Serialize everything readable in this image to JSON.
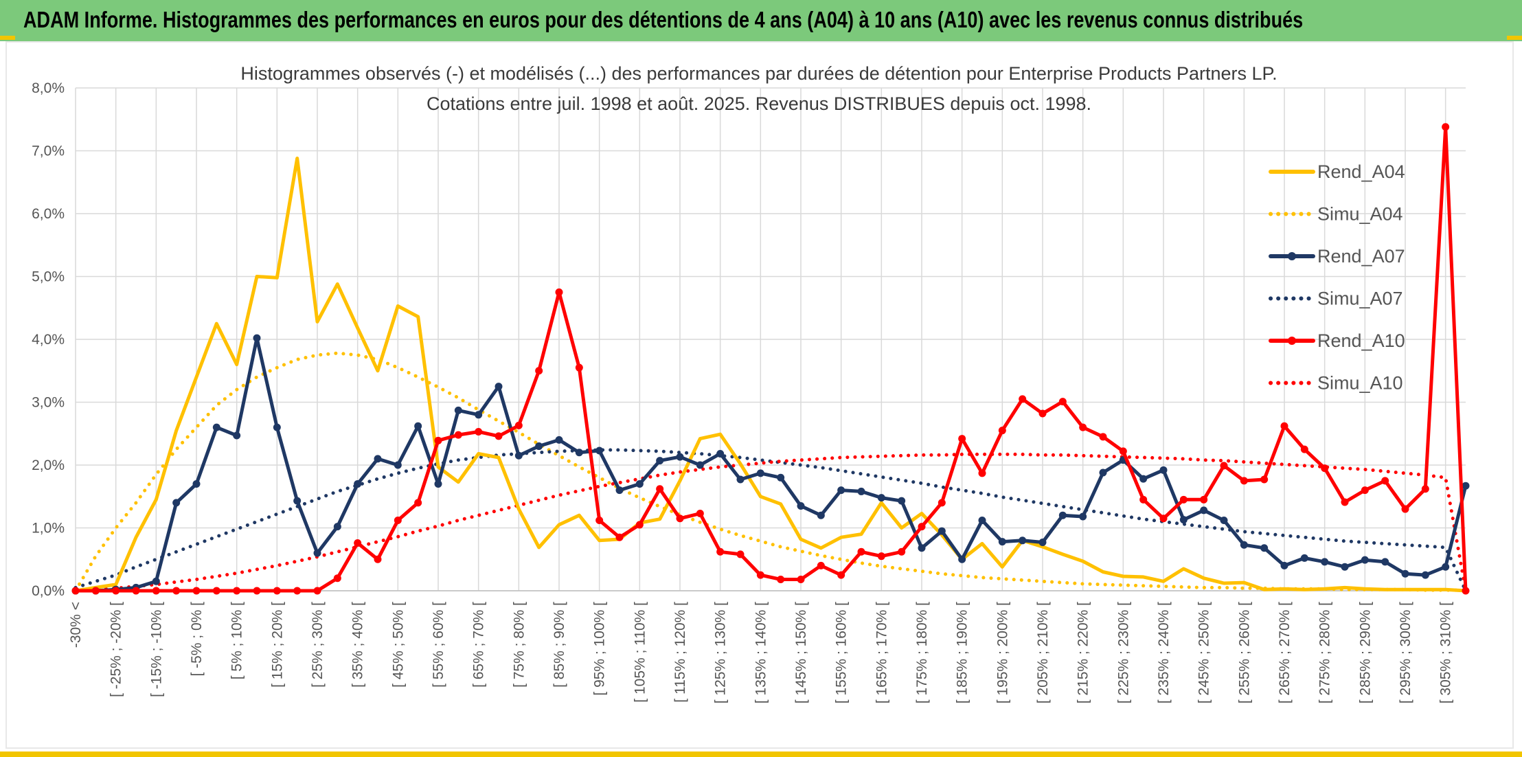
{
  "header": {
    "title": "ADAM Informe. Histogrammes des performances en euros pour des détentions de 4 ans (A04) à 10 ans (A10) avec les revenus connus distribués"
  },
  "chart_data": {
    "type": "line",
    "title_lines": [
      "Histogrammes observés (-) et modélisés (...) des performances par durées de détention pour Enterprise Products Partners LP.",
      "Cotations entre juil. 1998 et août. 2025. Revenus DISTRIBUES depuis oct. 1998."
    ],
    "ylim": [
      0,
      8
    ],
    "yticks": [
      "0,0%",
      "1,0%",
      "2,0%",
      "3,0%",
      "4,0%",
      "5,0%",
      "6,0%",
      "7,0%",
      "8,0%"
    ],
    "grid": true,
    "legend_position": "right",
    "category_count": 70,
    "xlabels": [
      "-30% <",
      "[ -25% ; -20% [",
      "[ -15% ; -10% [",
      "[ -5% ; 0% [",
      "[ 5% ; 10% [",
      "[ 15% ; 20% [",
      "[ 25% ; 30% [",
      "[ 35% ; 40% [",
      "[ 45% ; 50% [",
      "[ 55% ; 60% [",
      "[ 65% ; 70% [",
      "[ 75% ; 80% [",
      "[ 85% ; 90% [",
      "[ 95% ; 100% [",
      "[ 105% ; 110% [",
      "[ 115% ; 120% [",
      "[ 125% ; 130% [",
      "[ 135% ; 140% [",
      "[ 145% ; 150% [",
      "[ 155% ; 160% [",
      "[ 165% ; 170% [",
      "[ 175% ; 180% [",
      "[ 185% ; 190% [",
      "[ 195% ; 200% [",
      "[ 205% ; 210% [",
      "[ 215% ; 220% [",
      "[ 225% ; 230% [",
      "[ 235% ; 240% [",
      "[ 245% ; 250% [",
      "[ 255% ; 260% [",
      "[ 265% ; 270% [",
      "[ 275% ; 280% [",
      "[ 285% ; 290% [",
      "[ 295% ; 300% [",
      "[ 305% ; 310% ["
    ],
    "series": [
      {
        "name": "Rend_A04",
        "style": "solid",
        "markers": false,
        "color": "#ffc000",
        "values": [
          0.0,
          0.05,
          0.1,
          0.85,
          1.45,
          2.55,
          3.4,
          4.25,
          3.6,
          5.0,
          4.98,
          6.88,
          4.28,
          4.88,
          4.18,
          3.5,
          4.53,
          4.36,
          1.97,
          1.73,
          2.18,
          2.12,
          1.3,
          0.69,
          1.05,
          1.2,
          0.8,
          0.82,
          1.08,
          1.14,
          1.75,
          2.42,
          2.49,
          2.02,
          1.5,
          1.38,
          0.82,
          0.68,
          0.85,
          0.9,
          1.4,
          1.0,
          1.23,
          0.89,
          0.5,
          0.75,
          0.38,
          0.8,
          0.7,
          0.58,
          0.47,
          0.3,
          0.23,
          0.22,
          0.15,
          0.35,
          0.2,
          0.12,
          0.13,
          0.02,
          0.03,
          0.02,
          0.03,
          0.05,
          0.03,
          0.02,
          0.02,
          0.02,
          0.02,
          0.0
        ]
      },
      {
        "name": "Simu_A04",
        "style": "dotted",
        "markers": false,
        "color": "#ffc000",
        "values": [
          0.0,
          0.55,
          1.0,
          1.4,
          1.85,
          2.25,
          2.6,
          2.95,
          3.2,
          3.4,
          3.55,
          3.68,
          3.75,
          3.78,
          3.75,
          3.68,
          3.55,
          3.4,
          3.24,
          3.07,
          2.88,
          2.7,
          2.52,
          2.33,
          2.15,
          1.97,
          1.8,
          1.63,
          1.48,
          1.34,
          1.21,
          1.09,
          0.98,
          0.88,
          0.79,
          0.7,
          0.63,
          0.56,
          0.5,
          0.44,
          0.39,
          0.35,
          0.31,
          0.27,
          0.24,
          0.21,
          0.19,
          0.17,
          0.15,
          0.13,
          0.11,
          0.1,
          0.09,
          0.08,
          0.07,
          0.06,
          0.05,
          0.05,
          0.04,
          0.04,
          0.03,
          0.03,
          0.03,
          0.02,
          0.02,
          0.02,
          0.02,
          0.01,
          0.01,
          0.01
        ]
      },
      {
        "name": "Rend_A07",
        "style": "solid",
        "markers": true,
        "color": "#1f3864",
        "values": [
          0.0,
          0.0,
          0.02,
          0.05,
          0.15,
          1.4,
          1.7,
          2.6,
          2.47,
          4.02,
          2.6,
          1.43,
          0.6,
          1.02,
          1.7,
          2.1,
          2.0,
          2.62,
          1.7,
          2.87,
          2.8,
          3.25,
          2.15,
          2.3,
          2.4,
          2.2,
          2.23,
          1.6,
          1.7,
          2.07,
          2.13,
          2.0,
          2.18,
          1.77,
          1.87,
          1.8,
          1.35,
          1.2,
          1.6,
          1.58,
          1.48,
          1.43,
          0.68,
          0.95,
          0.5,
          1.12,
          0.78,
          0.8,
          0.77,
          1.2,
          1.18,
          1.88,
          2.08,
          1.78,
          1.92,
          1.13,
          1.28,
          1.12,
          0.73,
          0.68,
          0.4,
          0.52,
          0.46,
          0.38,
          0.49,
          0.46,
          0.27,
          0.25,
          0.38,
          1.67
        ]
      },
      {
        "name": "Simu_A07",
        "style": "dotted",
        "markers": false,
        "color": "#1f3864",
        "values": [
          0.05,
          0.15,
          0.25,
          0.38,
          0.5,
          0.62,
          0.74,
          0.86,
          0.98,
          1.1,
          1.22,
          1.34,
          1.46,
          1.58,
          1.68,
          1.78,
          1.87,
          1.95,
          2.02,
          2.08,
          2.12,
          2.16,
          2.18,
          2.2,
          2.22,
          2.23,
          2.24,
          2.24,
          2.23,
          2.22,
          2.2,
          2.18,
          2.15,
          2.12,
          2.08,
          2.04,
          2.0,
          1.96,
          1.91,
          1.86,
          1.81,
          1.76,
          1.71,
          1.65,
          1.6,
          1.55,
          1.49,
          1.44,
          1.39,
          1.34,
          1.29,
          1.24,
          1.19,
          1.14,
          1.1,
          1.06,
          1.02,
          0.98,
          0.94,
          0.91,
          0.88,
          0.85,
          0.82,
          0.79,
          0.77,
          0.75,
          0.73,
          0.71,
          0.69,
          0.0
        ]
      },
      {
        "name": "Rend_A10",
        "style": "solid",
        "markers": true,
        "color": "#ff0000",
        "values": [
          0.0,
          0.0,
          0.0,
          0.0,
          0.0,
          0.0,
          0.0,
          0.0,
          0.0,
          0.0,
          0.0,
          0.0,
          0.0,
          0.2,
          0.76,
          0.5,
          1.12,
          1.4,
          2.39,
          2.48,
          2.53,
          2.46,
          2.63,
          3.5,
          4.75,
          3.55,
          1.12,
          0.85,
          1.05,
          1.62,
          1.15,
          1.23,
          0.62,
          0.58,
          0.25,
          0.18,
          0.18,
          0.4,
          0.25,
          0.62,
          0.55,
          0.62,
          1.02,
          1.4,
          2.42,
          1.87,
          2.55,
          3.05,
          2.82,
          3.01,
          2.6,
          2.45,
          2.22,
          1.45,
          1.15,
          1.45,
          1.45,
          1.99,
          1.75,
          1.77,
          2.62,
          2.25,
          1.95,
          1.41,
          1.6,
          1.75,
          1.3,
          1.62,
          7.38,
          0.0
        ]
      },
      {
        "name": "Simu_A10",
        "style": "dotted",
        "markers": false,
        "color": "#ff0000",
        "values": [
          0.0,
          0.02,
          0.04,
          0.07,
          0.1,
          0.14,
          0.18,
          0.23,
          0.28,
          0.34,
          0.4,
          0.47,
          0.54,
          0.62,
          0.7,
          0.78,
          0.86,
          0.95,
          1.03,
          1.12,
          1.2,
          1.28,
          1.36,
          1.44,
          1.52,
          1.59,
          1.66,
          1.72,
          1.78,
          1.84,
          1.89,
          1.93,
          1.97,
          2.0,
          2.03,
          2.06,
          2.08,
          2.1,
          2.12,
          2.13,
          2.14,
          2.15,
          2.16,
          2.16,
          2.17,
          2.17,
          2.17,
          2.17,
          2.16,
          2.16,
          2.15,
          2.14,
          2.13,
          2.12,
          2.11,
          2.1,
          2.08,
          2.07,
          2.05,
          2.03,
          2.01,
          1.99,
          1.97,
          1.95,
          1.93,
          1.9,
          1.87,
          1.84,
          1.8,
          0.0
        ]
      }
    ]
  }
}
